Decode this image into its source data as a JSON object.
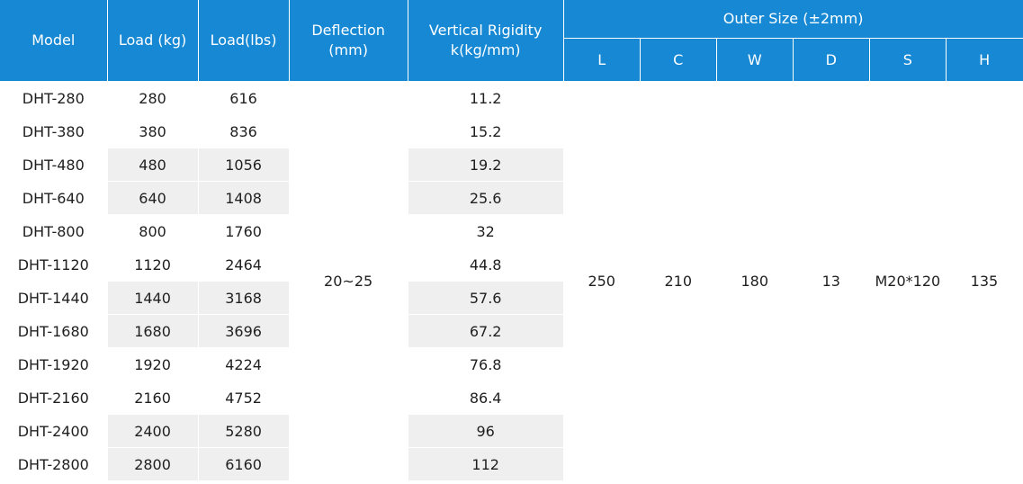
{
  "headers": {
    "model": "Model",
    "load_kg": "Load (kg)",
    "load_lbs": "Load(lbs)",
    "deflection": "Deflection (mm)",
    "rigidity_line1": "Vertical Rigidity",
    "rigidity_line2": "k(kg/mm)",
    "outer_size": "Outer Size (±2mm)",
    "size_cols": [
      "L",
      "C",
      "W",
      "D",
      "S",
      "H"
    ]
  },
  "shared": {
    "deflection": "20~25",
    "L": "250",
    "C": "210",
    "W": "180",
    "D": "13",
    "S": "M20*120",
    "H": "135"
  },
  "rows": [
    {
      "model": "DHT-280",
      "kg": "280",
      "lbs": "616",
      "rigidity": "11.2",
      "shaded": false
    },
    {
      "model": "DHT-380",
      "kg": "380",
      "lbs": "836",
      "rigidity": "15.2",
      "shaded": false
    },
    {
      "model": "DHT-480",
      "kg": "480",
      "lbs": "1056",
      "rigidity": "19.2",
      "shaded": true
    },
    {
      "model": "DHT-640",
      "kg": "640",
      "lbs": "1408",
      "rigidity": "25.6",
      "shaded": true
    },
    {
      "model": "DHT-800",
      "kg": "800",
      "lbs": "1760",
      "rigidity": "32",
      "shaded": false
    },
    {
      "model": "DHT-1120",
      "kg": "1120",
      "lbs": "2464",
      "rigidity": "44.8",
      "shaded": false
    },
    {
      "model": "DHT-1440",
      "kg": "1440",
      "lbs": "3168",
      "rigidity": "57.6",
      "shaded": true
    },
    {
      "model": "DHT-1680",
      "kg": "1680",
      "lbs": "3696",
      "rigidity": "67.2",
      "shaded": true
    },
    {
      "model": "DHT-1920",
      "kg": "1920",
      "lbs": "4224",
      "rigidity": "76.8",
      "shaded": false
    },
    {
      "model": "DHT-2160",
      "kg": "2160",
      "lbs": "4752",
      "rigidity": "86.4",
      "shaded": false
    },
    {
      "model": "DHT-2400",
      "kg": "2400",
      "lbs": "5280",
      "rigidity": "96",
      "shaded": true
    },
    {
      "model": "DHT-2800",
      "kg": "2800",
      "lbs": "6160",
      "rigidity": "112",
      "shaded": true
    }
  ],
  "colors": {
    "header_bg": "#1688d4",
    "header_text": "#ffffff",
    "row_shade": "#efefef",
    "body_text": "#1f1f1f"
  }
}
